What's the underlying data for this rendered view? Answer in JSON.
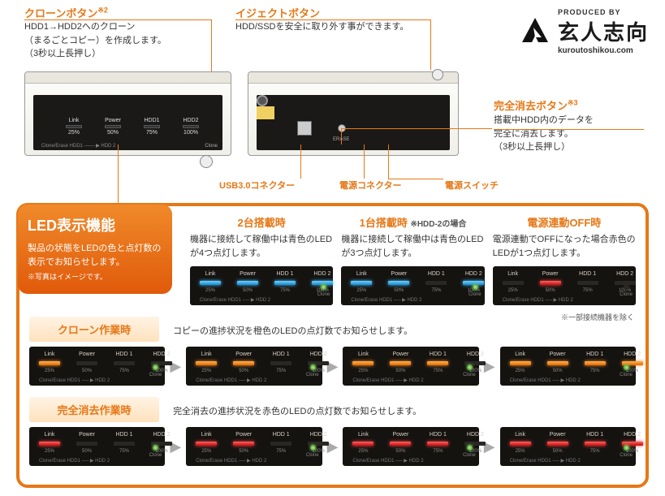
{
  "colors": {
    "accent": "#e67817",
    "panel_bg": "#151310",
    "led_blue": "#4ac0ff",
    "led_orange": "#ff9030",
    "led_red": "#ff4040",
    "dot_green": "#7ee050"
  },
  "logo": {
    "produced_by": "PRODUCED BY",
    "name_jp": "玄人志向",
    "url": "kuroutoshikou.com"
  },
  "callouts": {
    "clone": {
      "title": "クローンボタン",
      "sup": "※2",
      "body": "HDD1→HDD2へのクローン\n（まるごとコピー）を作成します。\n（3秒以上長押し）"
    },
    "eject": {
      "title": "イジェクトボタン",
      "body": "HDD/SSDを安全に取り外す事ができます。"
    },
    "erase": {
      "title": "完全消去ボタン",
      "sup": "※3",
      "body": "搭載中HDD内のデータを\n完全に消去します。\n（3秒以上長押し）"
    }
  },
  "back_labels": {
    "usb": "USB3.0コネクター",
    "dc": "電源コネクター",
    "switch": "電源スイッチ"
  },
  "device_front": {
    "led_names": [
      "Link",
      "Power",
      "HDD1",
      "HDD2"
    ],
    "progress": [
      "25%",
      "50%",
      "75%",
      "100%"
    ],
    "bottom": "Clone/Erase    HDD1 ─── ▶ HDD 2",
    "clone_label": "Clone"
  },
  "device_back": {
    "erase_label": "ERASE"
  },
  "led_section": {
    "badge": {
      "title": "LED表示機能",
      "body": "製品の状態をLEDの色と点灯数の表示でお知らせします。",
      "note": "※写真はイメージです。"
    },
    "top": [
      {
        "title": "2台搭載時",
        "desc": "機器に接続して稼働中は青色のLEDが4つ点灯します。",
        "leds": [
          "blue",
          "blue",
          "blue",
          "blue"
        ],
        "dot": "green"
      },
      {
        "title": "1台搭載時",
        "sub": "※HDD-2の場合",
        "desc": "機器に接続して稼働中は青色のLEDが3つ点灯します。",
        "leds": [
          "blue",
          "blue",
          "off",
          "blue"
        ],
        "dot": "green"
      },
      {
        "title": "電源連動OFF時",
        "desc": "電源連動でOFFになった場合赤色のLEDが1つ点灯します。",
        "leds": [
          "off",
          "red",
          "off",
          "off"
        ],
        "dot": "off"
      }
    ],
    "note_exclude": "※一部接続機器を除く",
    "clone_row": {
      "title": "クローン作業時",
      "desc": "コピーの進捗状況を橙色のLEDの点灯数でお知らせします。",
      "panels": [
        {
          "leds": [
            "orange",
            "off",
            "off",
            "off"
          ],
          "dot": "green"
        },
        {
          "leds": [
            "orange",
            "orange",
            "off",
            "off"
          ],
          "dot": "green"
        },
        {
          "leds": [
            "orange",
            "orange",
            "orange",
            "off"
          ],
          "dot": "green"
        },
        {
          "leds": [
            "orange",
            "orange",
            "orange",
            "orange"
          ],
          "dot": "green"
        }
      ]
    },
    "erase_row": {
      "title": "完全消去作業時",
      "desc": "完全消去の進捗状況を赤色のLEDの点灯数でお知らせします。",
      "panels": [
        {
          "leds": [
            "red",
            "off",
            "off",
            "off"
          ],
          "dot": "green"
        },
        {
          "leds": [
            "red",
            "red",
            "off",
            "off"
          ],
          "dot": "green"
        },
        {
          "leds": [
            "red",
            "red",
            "red",
            "off"
          ],
          "dot": "green"
        },
        {
          "leds": [
            "red",
            "red",
            "red",
            "red"
          ],
          "dot": "green"
        }
      ]
    },
    "panel_labels": [
      "Link",
      "Power",
      "HDD 1",
      "HDD 2"
    ],
    "panel_pct": [
      "25%",
      "50%",
      "75%",
      "100%"
    ],
    "panel_bottom": "Clone/Erase    HDD1 ── ▶ HDD 2",
    "panel_clone": "Clone"
  }
}
